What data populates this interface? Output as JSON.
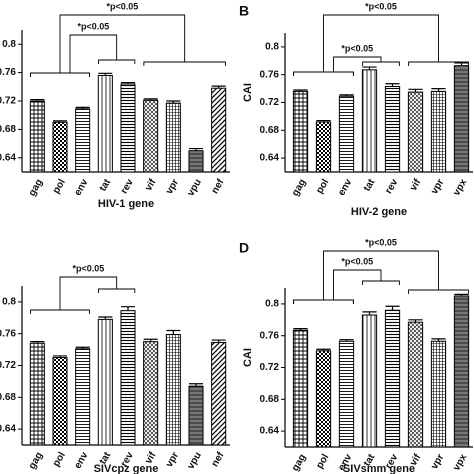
{
  "chart_data": [
    {
      "type": "bar",
      "panel": null,
      "xlabel": "HIV-1 gene",
      "ylabel": null,
      "categories": [
        "gag",
        "pol",
        "env",
        "tat",
        "rev",
        "vif",
        "vpr",
        "vpu",
        "nef"
      ],
      "values": [
        0.72,
        0.69,
        0.709,
        0.756,
        0.744,
        0.721,
        0.717,
        0.65,
        0.738
      ],
      "errors": [
        0.002,
        0.002,
        0.002,
        0.003,
        0.002,
        0.002,
        0.003,
        0.003,
        0.003
      ],
      "color": "#000000",
      "ylim": [
        0.62,
        0.82
      ],
      "yticks": [
        0.64,
        0.68,
        0.72,
        0.76,
        0.8
      ],
      "annotations": [
        "*p<0.05",
        "*p<0.05"
      ]
    },
    {
      "type": "bar",
      "panel": "B",
      "xlabel": "HIV-2 gene",
      "ylabel": "CAI",
      "categories": [
        "gag",
        "pol",
        "env",
        "tat",
        "rev",
        "vif",
        "vpr",
        "vpx"
      ],
      "values": [
        0.736,
        0.692,
        0.729,
        0.767,
        0.743,
        0.735,
        0.736,
        0.773
      ],
      "errors": [
        0.002,
        0.002,
        0.002,
        0.004,
        0.004,
        0.004,
        0.004,
        0.004
      ],
      "color": "#000000",
      "ylim": [
        0.62,
        0.82
      ],
      "yticks": [
        0.64,
        0.68,
        0.72,
        0.76,
        0.8
      ],
      "annotations": [
        "*p<0.05",
        "*p<0.05"
      ]
    },
    {
      "type": "bar",
      "panel": null,
      "xlabel": "SIVcpz gene",
      "ylabel": null,
      "categories": [
        "gag",
        "pol",
        "env",
        "tat",
        "rev",
        "vif",
        "vpr",
        "vpu",
        "nef"
      ],
      "values": [
        0.748,
        0.73,
        0.741,
        0.778,
        0.789,
        0.75,
        0.759,
        0.694,
        0.749
      ],
      "errors": [
        0.002,
        0.002,
        0.002,
        0.003,
        0.005,
        0.003,
        0.005,
        0.003,
        0.003
      ],
      "color": "#000000",
      "ylim": [
        0.62,
        0.82
      ],
      "yticks": [
        0.64,
        0.68,
        0.72,
        0.76,
        0.8
      ],
      "annotations": [
        "*p<0.05"
      ]
    },
    {
      "type": "bar",
      "panel": "D",
      "xlabel": "SIVsmm gene",
      "ylabel": "CAI",
      "categories": [
        "gag",
        "pol",
        "env",
        "tat",
        "rev",
        "vif",
        "vpr",
        "vpx"
      ],
      "values": [
        0.767,
        0.741,
        0.753,
        0.786,
        0.792,
        0.777,
        0.753,
        0.81
      ],
      "errors": [
        0.002,
        0.002,
        0.002,
        0.004,
        0.005,
        0.003,
        0.003,
        0.002
      ],
      "color": "#000000",
      "ylim": [
        0.62,
        0.82
      ],
      "yticks": [
        0.64,
        0.68,
        0.72,
        0.76,
        0.8
      ],
      "annotations": [
        "*p<0.05",
        "*p<0.05"
      ]
    }
  ]
}
